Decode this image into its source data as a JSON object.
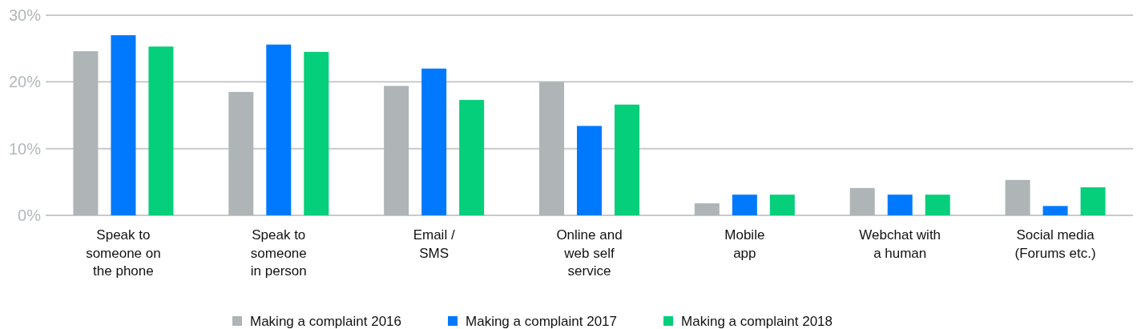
{
  "chart_data": {
    "type": "bar",
    "categories": [
      "Speak to\nsomeone on\nthe phone",
      "Speak to\nsomeone\nin person",
      "Email /\nSMS",
      "Online and\nweb self\nservice",
      "Mobile\napp",
      "Webchat with\na human",
      "Social media\n(Forums etc.)"
    ],
    "series": [
      {
        "name": "Making a complaint 2016",
        "color": "#afb5b7",
        "values": [
          24.6,
          18.5,
          19.4,
          20.0,
          1.8,
          4.1,
          5.3
        ]
      },
      {
        "name": "Making a complaint 2017",
        "color": "#0079ff",
        "values": [
          27.0,
          25.6,
          22.0,
          13.4,
          3.1,
          3.1,
          1.4
        ]
      },
      {
        "name": "Making a complaint 2018",
        "color": "#05cf7b",
        "values": [
          25.3,
          24.5,
          17.3,
          16.6,
          3.1,
          3.1,
          4.2
        ]
      }
    ],
    "ylim": [
      0,
      30
    ],
    "yticks": [
      {
        "value": 0,
        "label": "0%"
      },
      {
        "value": 10,
        "label": "10%"
      },
      {
        "value": 20,
        "label": "20%"
      },
      {
        "value": 30,
        "label": "30%"
      }
    ],
    "grid": "y",
    "legend": "bottom"
  }
}
